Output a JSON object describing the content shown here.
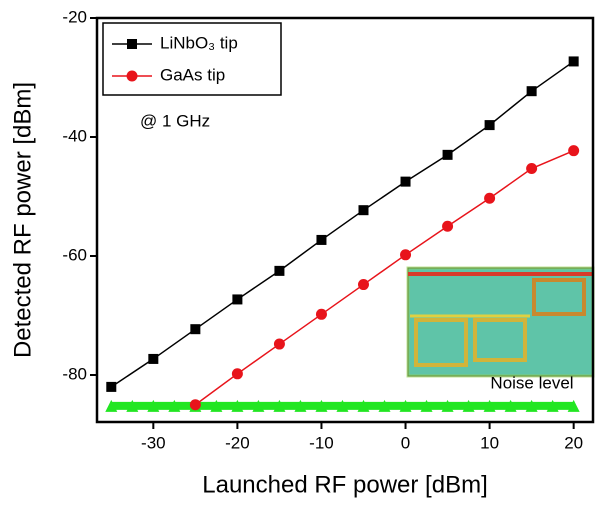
{
  "chart_data": {
    "type": "line",
    "x_label": "Launched RF power [dBm]",
    "y_label": "Detected RF power [dBm]",
    "xlim": [
      -36.7,
      22.3
    ],
    "ylim": [
      -87.9,
      -20
    ],
    "xticks": [
      -30,
      -20,
      -10,
      0,
      10,
      20
    ],
    "yticks": [
      -80,
      -60,
      -40,
      -20
    ],
    "annotation": "@ 1 GHz",
    "series": [
      {
        "name": "LiNbO₃ tip",
        "color": "#000000",
        "marker": "square",
        "x": [
          -35,
          -30,
          -25,
          -20,
          -15,
          -10,
          -5,
          0,
          5,
          10,
          15,
          20
        ],
        "values": [
          -82,
          -77.3,
          -72.3,
          -67.3,
          -62.5,
          -57.3,
          -52.3,
          -47.5,
          -43,
          -38,
          -32.3,
          -27.3
        ]
      },
      {
        "name": "GaAs tip",
        "color": "#e8141b",
        "marker": "circle",
        "x": [
          -25,
          -20,
          -15,
          -10,
          -5,
          0,
          5,
          10,
          15,
          20
        ],
        "values": [
          -85,
          -79.8,
          -74.8,
          -69.8,
          -64.8,
          -59.8,
          -55,
          -50.3,
          -45.3,
          -42.3
        ]
      }
    ],
    "noise": {
      "label": "Noise level",
      "color": "#22e622",
      "x": [
        -35,
        -32.5,
        -30,
        -27.5,
        -25,
        -22.5,
        -20,
        -17.5,
        -15,
        -12.5,
        -10,
        -7.5,
        -5,
        -2.5,
        0,
        2.5,
        5,
        7.5,
        10,
        12.5,
        15,
        17.5,
        20
      ],
      "values": [
        -85.2,
        -85.2,
        -85.2,
        -85.2,
        -85.2,
        -85.2,
        -85.2,
        -85.2,
        -85.2,
        -85.2,
        -85.2,
        -85.2,
        -85.2,
        -85.2,
        -85.2,
        -85.2,
        -85.2,
        -85.2,
        -85.2,
        -85.2,
        -85.2,
        -85.2,
        -85.2
      ]
    }
  }
}
